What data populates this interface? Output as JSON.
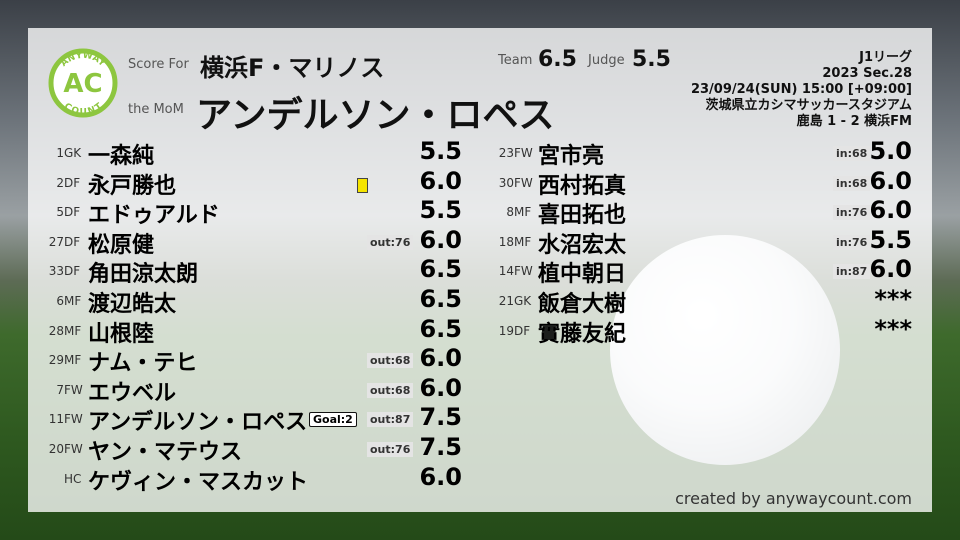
{
  "logo": {
    "top": "ANYWAY",
    "middle": "AC",
    "bottom": "COUNT"
  },
  "header": {
    "score_for": "Score For",
    "team": "横浜F・マリノス",
    "the_mom": "the MoM",
    "mom": "アンデルソン・ロペス",
    "team_label": "Team",
    "team_score": "6.5",
    "judge_label": "Judge",
    "judge_score": "5.5"
  },
  "match": {
    "league": "J1リーグ",
    "round": "2023 Sec.28",
    "datetime": "23/09/24(SUN) 15:00 [+09:00]",
    "venue": "茨城県立カシマサッカースタジアム",
    "result": "鹿島 1 - 2 横浜FM"
  },
  "players_left": [
    {
      "num": "1",
      "pos": "GK",
      "name": "一森純",
      "score": "5.5"
    },
    {
      "num": "2",
      "pos": "DF",
      "name": "永戸勝也",
      "score": "6.0",
      "card": "#f5e400"
    },
    {
      "num": "5",
      "pos": "DF",
      "name": "エドゥアルド",
      "score": "5.5"
    },
    {
      "num": "27",
      "pos": "DF",
      "name": "松原健",
      "sub": "out:76",
      "score": "6.0"
    },
    {
      "num": "33",
      "pos": "DF",
      "name": "角田涼太朗",
      "score": "6.5"
    },
    {
      "num": "6",
      "pos": "MF",
      "name": "渡辺皓太",
      "score": "6.5"
    },
    {
      "num": "28",
      "pos": "MF",
      "name": "山根陸",
      "score": "6.5"
    },
    {
      "num": "29",
      "pos": "MF",
      "name": "ナム・テヒ",
      "sub": "out:68",
      "score": "6.0"
    },
    {
      "num": "7",
      "pos": "FW",
      "name": "エウベル",
      "sub": "out:68",
      "score": "6.0"
    },
    {
      "num": "11",
      "pos": "FW",
      "name": "アンデルソン・ロペス",
      "goal": "Goal:2",
      "sub": "out:87",
      "score": "7.5"
    },
    {
      "num": "20",
      "pos": "FW",
      "name": "ヤン・マテウス",
      "sub": "out:76",
      "score": "7.5"
    },
    {
      "pos": "HC",
      "name": "ケヴィン・マスカット",
      "score": "6.0"
    }
  ],
  "players_right": [
    {
      "num": "23",
      "pos": "FW",
      "name": "宮市亮",
      "sub": "in:68",
      "score": "5.0"
    },
    {
      "num": "30",
      "pos": "FW",
      "name": "西村拓真",
      "sub": "in:68",
      "score": "6.0"
    },
    {
      "num": "8",
      "pos": "MF",
      "name": "喜田拓也",
      "sub": "in:76",
      "score": "6.0"
    },
    {
      "num": "18",
      "pos": "MF",
      "name": "水沼宏太",
      "sub": "in:76",
      "score": "5.5"
    },
    {
      "num": "14",
      "pos": "FW",
      "name": "植中朝日",
      "sub": "in:87",
      "score": "6.0"
    },
    {
      "num": "21",
      "pos": "GK",
      "name": "飯倉大樹",
      "score": "***"
    },
    {
      "num": "19",
      "pos": "DF",
      "name": "實藤友紀",
      "score": "***"
    }
  ],
  "footer": "created by anywaycount.com"
}
